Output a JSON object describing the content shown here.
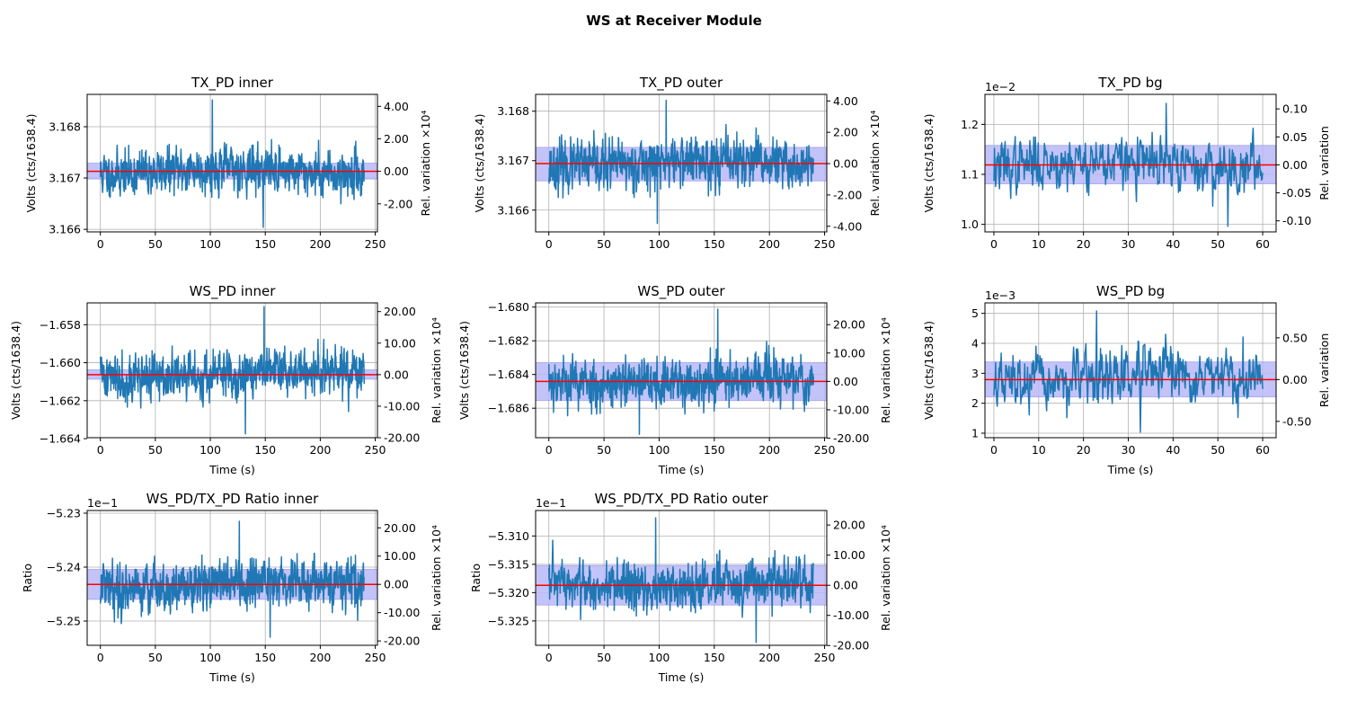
{
  "figure": {
    "title": "WS at Receiver Module"
  },
  "colors": {
    "trace": "#1f77b4",
    "mean_line": "#ff0000",
    "band": "#b8b8f8",
    "band_edge": "#7070e0",
    "grid": "#b0b0b0"
  },
  "chart_data": [
    {
      "type": "line",
      "title": "TX_PD inner",
      "xlabel": "",
      "ylabel": "Volts (cts/1638.4)",
      "y2label": "Rel. variation ×10⁴",
      "xlim": [
        -12,
        252
      ],
      "ylim": [
        3.16595,
        3.16863
      ],
      "x_ticks": [
        0,
        50,
        100,
        150,
        200,
        250
      ],
      "x_tick_labels": [
        "0",
        "50",
        "100",
        "150",
        "200",
        "250"
      ],
      "y_ticks": [
        3.166,
        3.167,
        3.168
      ],
      "y_tick_labels": [
        "3.166",
        "3.167",
        "3.168"
      ],
      "y2_ticks": [
        4,
        2,
        0,
        -2
      ],
      "y2_tick_labels": [
        "4.00",
        "2.00",
        "0.00",
        "-2.00"
      ],
      "y2_scale": 10000,
      "y2_sign": 1,
      "mean": 3.16713,
      "band": [
        3.16698,
        3.16729
      ],
      "series": [
        {
          "x_start": 0,
          "x_end": 240,
          "points": 960,
          "center": 3.16713,
          "std": 0.00023,
          "spike_max": 3.16852,
          "spike_min": 3.16604,
          "seed": 11
        }
      ]
    },
    {
      "type": "line",
      "title": "TX_PD outer",
      "xlabel": "",
      "ylabel": "Volts (cts/1638.4)",
      "y2label": "Rel. variation ×10⁴",
      "xlim": [
        -12,
        252
      ],
      "ylim": [
        3.16556,
        3.16834
      ],
      "x_ticks": [
        0,
        50,
        100,
        150,
        200,
        250
      ],
      "x_tick_labels": [
        "0",
        "50",
        "100",
        "150",
        "200",
        "250"
      ],
      "y_ticks": [
        3.166,
        3.167,
        3.168
      ],
      "y_tick_labels": [
        "3.166",
        "3.167",
        "3.168"
      ],
      "y2_ticks": [
        4,
        2,
        0,
        -2,
        -4
      ],
      "y2_tick_labels": [
        "4.00",
        "2.00",
        "0.00",
        "-2.00",
        "-4.00"
      ],
      "y2_scale": 10000,
      "y2_sign": 1,
      "mean": 3.16694,
      "band": [
        3.16659,
        3.16727
      ],
      "series": [
        {
          "x_start": 0,
          "x_end": 240,
          "points": 960,
          "center": 3.16694,
          "std": 0.00026,
          "spike_max": 3.16822,
          "spike_min": 3.16573,
          "seed": 23
        }
      ]
    },
    {
      "type": "line",
      "title": "TX_PD bg",
      "xlabel": "",
      "ylabel": "Volts (cts/1638.4)",
      "y2label": "Rel. variation",
      "xlim": [
        -2,
        63
      ],
      "ylim": [
        0.00985,
        0.0126
      ],
      "axis_multiplier": "1e−2",
      "x_ticks": [
        0,
        10,
        20,
        30,
        40,
        50,
        60
      ],
      "x_tick_labels": [
        "0",
        "10",
        "20",
        "30",
        "40",
        "50",
        "60"
      ],
      "y_ticks": [
        0.01,
        0.011,
        0.012
      ],
      "y_tick_labels": [
        "1.0",
        "1.1",
        "1.2"
      ],
      "y2_ticks": [
        0.1,
        0.05,
        0.0,
        -0.05,
        -0.1
      ],
      "y2_tick_labels": [
        "0.10",
        "0.05",
        "0.00",
        "-0.05",
        "-0.10"
      ],
      "y2_scale": 1,
      "y2_sign": 1,
      "mean": 0.01119,
      "band": [
        0.01081,
        0.01158
      ],
      "series": [
        {
          "x_start": 0,
          "x_end": 60,
          "points": 480,
          "center": 0.01119,
          "std": 0.00028,
          "spike_max": 0.01242,
          "spike_min": 0.00996,
          "seed": 37
        }
      ]
    },
    {
      "type": "line",
      "title": "WS_PD inner",
      "xlabel": "Time (s)",
      "ylabel": "Volts (cts/1638.4)",
      "y2label": "Rel. variation ×10⁴",
      "xlim": [
        -12,
        252
      ],
      "ylim": [
        -1.66395,
        -1.65685
      ],
      "x_ticks": [
        0,
        50,
        100,
        150,
        200,
        250
      ],
      "x_tick_labels": [
        "0",
        "50",
        "100",
        "150",
        "200",
        "250"
      ],
      "y_ticks": [
        -1.664,
        -1.662,
        -1.66,
        -1.658
      ],
      "y_tick_labels": [
        "−1.664",
        "−1.662",
        "−1.660",
        "−1.658"
      ],
      "y2_ticks": [
        -20,
        -10,
        0,
        10,
        20
      ],
      "y2_tick_labels": [
        "-20.00",
        "-10.00",
        "0.00",
        "10.00",
        "20.00"
      ],
      "y2_scale": 10000,
      "y2_sign": -1,
      "mean": -1.66063,
      "band": [
        -1.66087,
        -1.66037
      ],
      "series": [
        {
          "x_start": 0,
          "x_end": 240,
          "points": 960,
          "center": -1.66063,
          "std": 0.00065,
          "spike_max": -1.65705,
          "spike_min": -1.66375,
          "seed": 41
        }
      ]
    },
    {
      "type": "line",
      "title": "WS_PD outer",
      "xlabel": "Time (s)",
      "ylabel": "Volts (cts/1638.4)",
      "y2label": "Rel. variation ×10⁴",
      "xlim": [
        -12,
        252
      ],
      "ylim": [
        -1.68775,
        -1.67975
      ],
      "x_ticks": [
        0,
        50,
        100,
        150,
        200,
        250
      ],
      "x_tick_labels": [
        "0",
        "50",
        "100",
        "150",
        "200",
        "250"
      ],
      "y_ticks": [
        -1.686,
        -1.684,
        -1.682,
        -1.68
      ],
      "y_tick_labels": [
        "−1.686",
        "−1.684",
        "−1.682",
        "−1.680"
      ],
      "y2_ticks": [
        -20,
        -10,
        0,
        10,
        20
      ],
      "y2_tick_labels": [
        "-20.00",
        "-10.00",
        "0.00",
        "10.00",
        "20.00"
      ],
      "y2_scale": 10000,
      "y2_sign": -1,
      "mean": -1.68441,
      "band": [
        -1.68555,
        -1.68329
      ],
      "series": [
        {
          "x_start": 0,
          "x_end": 240,
          "points": 960,
          "center": -1.68441,
          "std": 0.00075,
          "spike_max": -1.68012,
          "spike_min": -1.68755,
          "seed": 53
        }
      ]
    },
    {
      "type": "line",
      "title": "WS_PD bg",
      "xlabel": "Time (s)",
      "ylabel": "Volts (cts/1638.4)",
      "y2label": "Rel. variation",
      "xlim": [
        -2,
        63
      ],
      "ylim": [
        0.00085,
        0.00535
      ],
      "axis_multiplier": "1e−3",
      "x_ticks": [
        0,
        10,
        20,
        30,
        40,
        50,
        60
      ],
      "x_tick_labels": [
        "0",
        "10",
        "20",
        "30",
        "40",
        "50",
        "60"
      ],
      "y_ticks": [
        0.001,
        0.002,
        0.003,
        0.004,
        0.005
      ],
      "y_tick_labels": [
        "1",
        "2",
        "3",
        "4",
        "5"
      ],
      "y2_ticks": [
        0.5,
        0.0,
        -0.5
      ],
      "y2_tick_labels": [
        "0.50",
        "0.00",
        "-0.50"
      ],
      "y2_scale": 1,
      "y2_sign": 1,
      "mean": 0.00279,
      "band": [
        0.00221,
        0.00338
      ],
      "series": [
        {
          "x_start": 0,
          "x_end": 60,
          "points": 480,
          "center": 0.00279,
          "std": 0.00048,
          "spike_max": 0.00508,
          "spike_min": 0.00103,
          "seed": 67
        }
      ]
    },
    {
      "type": "line",
      "title": "WS_PD/TX_PD Ratio inner",
      "xlabel": "Time (s)",
      "ylabel": "Ratio",
      "y2label": "Rel. variation ×10⁴",
      "xlim": [
        -12,
        252
      ],
      "ylim": [
        -0.52545,
        -0.52295
      ],
      "axis_multiplier": "1e−1",
      "x_ticks": [
        0,
        50,
        100,
        150,
        200,
        250
      ],
      "x_tick_labels": [
        "0",
        "50",
        "100",
        "150",
        "200",
        "250"
      ],
      "y_ticks": [
        -0.525,
        -0.524,
        -0.523
      ],
      "y_tick_labels": [
        "−5.25",
        "−5.24",
        "−5.23"
      ],
      "y2_ticks": [
        -20,
        -10,
        0,
        10,
        20
      ],
      "y2_tick_labels": [
        "-20.00",
        "-10.00",
        "0.00",
        "10.00",
        "20.00"
      ],
      "y2_scale": 10000,
      "y2_sign": -1,
      "mean": -0.52432,
      "band": [
        -0.5246,
        -0.52404
      ],
      "series": [
        {
          "x_start": 0,
          "x_end": 240,
          "points": 960,
          "center": -0.52432,
          "std": 0.00024,
          "spike_max": -0.52315,
          "spike_min": -0.5253,
          "seed": 79
        }
      ]
    },
    {
      "type": "line",
      "title": "WS_PD/TX_PD Ratio outer",
      "xlabel": "Time (s)",
      "ylabel": "Ratio",
      "y2label": "Rel. variation ×10⁴",
      "xlim": [
        -12,
        252
      ],
      "ylim": [
        -0.53293,
        -0.53055
      ],
      "axis_multiplier": "1e−1",
      "x_ticks": [
        0,
        50,
        100,
        150,
        200,
        250
      ],
      "x_tick_labels": [
        "0",
        "50",
        "100",
        "150",
        "200",
        "250"
      ],
      "y_ticks": [
        -0.5325,
        -0.532,
        -0.5315,
        -0.531
      ],
      "y_tick_labels": [
        "−5.325",
        "−5.320",
        "−5.315",
        "−5.310"
      ],
      "y2_ticks": [
        -20,
        -10,
        0,
        10,
        20
      ],
      "y2_tick_labels": [
        "-20.00",
        "-10.00",
        "0.00",
        "10.00",
        "20.00"
      ],
      "y2_scale": 10000,
      "y2_sign": -1,
      "mean": -0.53187,
      "band": [
        -0.53222,
        -0.53152
      ],
      "series": [
        {
          "x_start": 0,
          "x_end": 240,
          "points": 960,
          "center": -0.53187,
          "std": 0.00022,
          "spike_max": -0.53068,
          "spike_min": -0.53288,
          "seed": 97
        }
      ]
    }
  ]
}
